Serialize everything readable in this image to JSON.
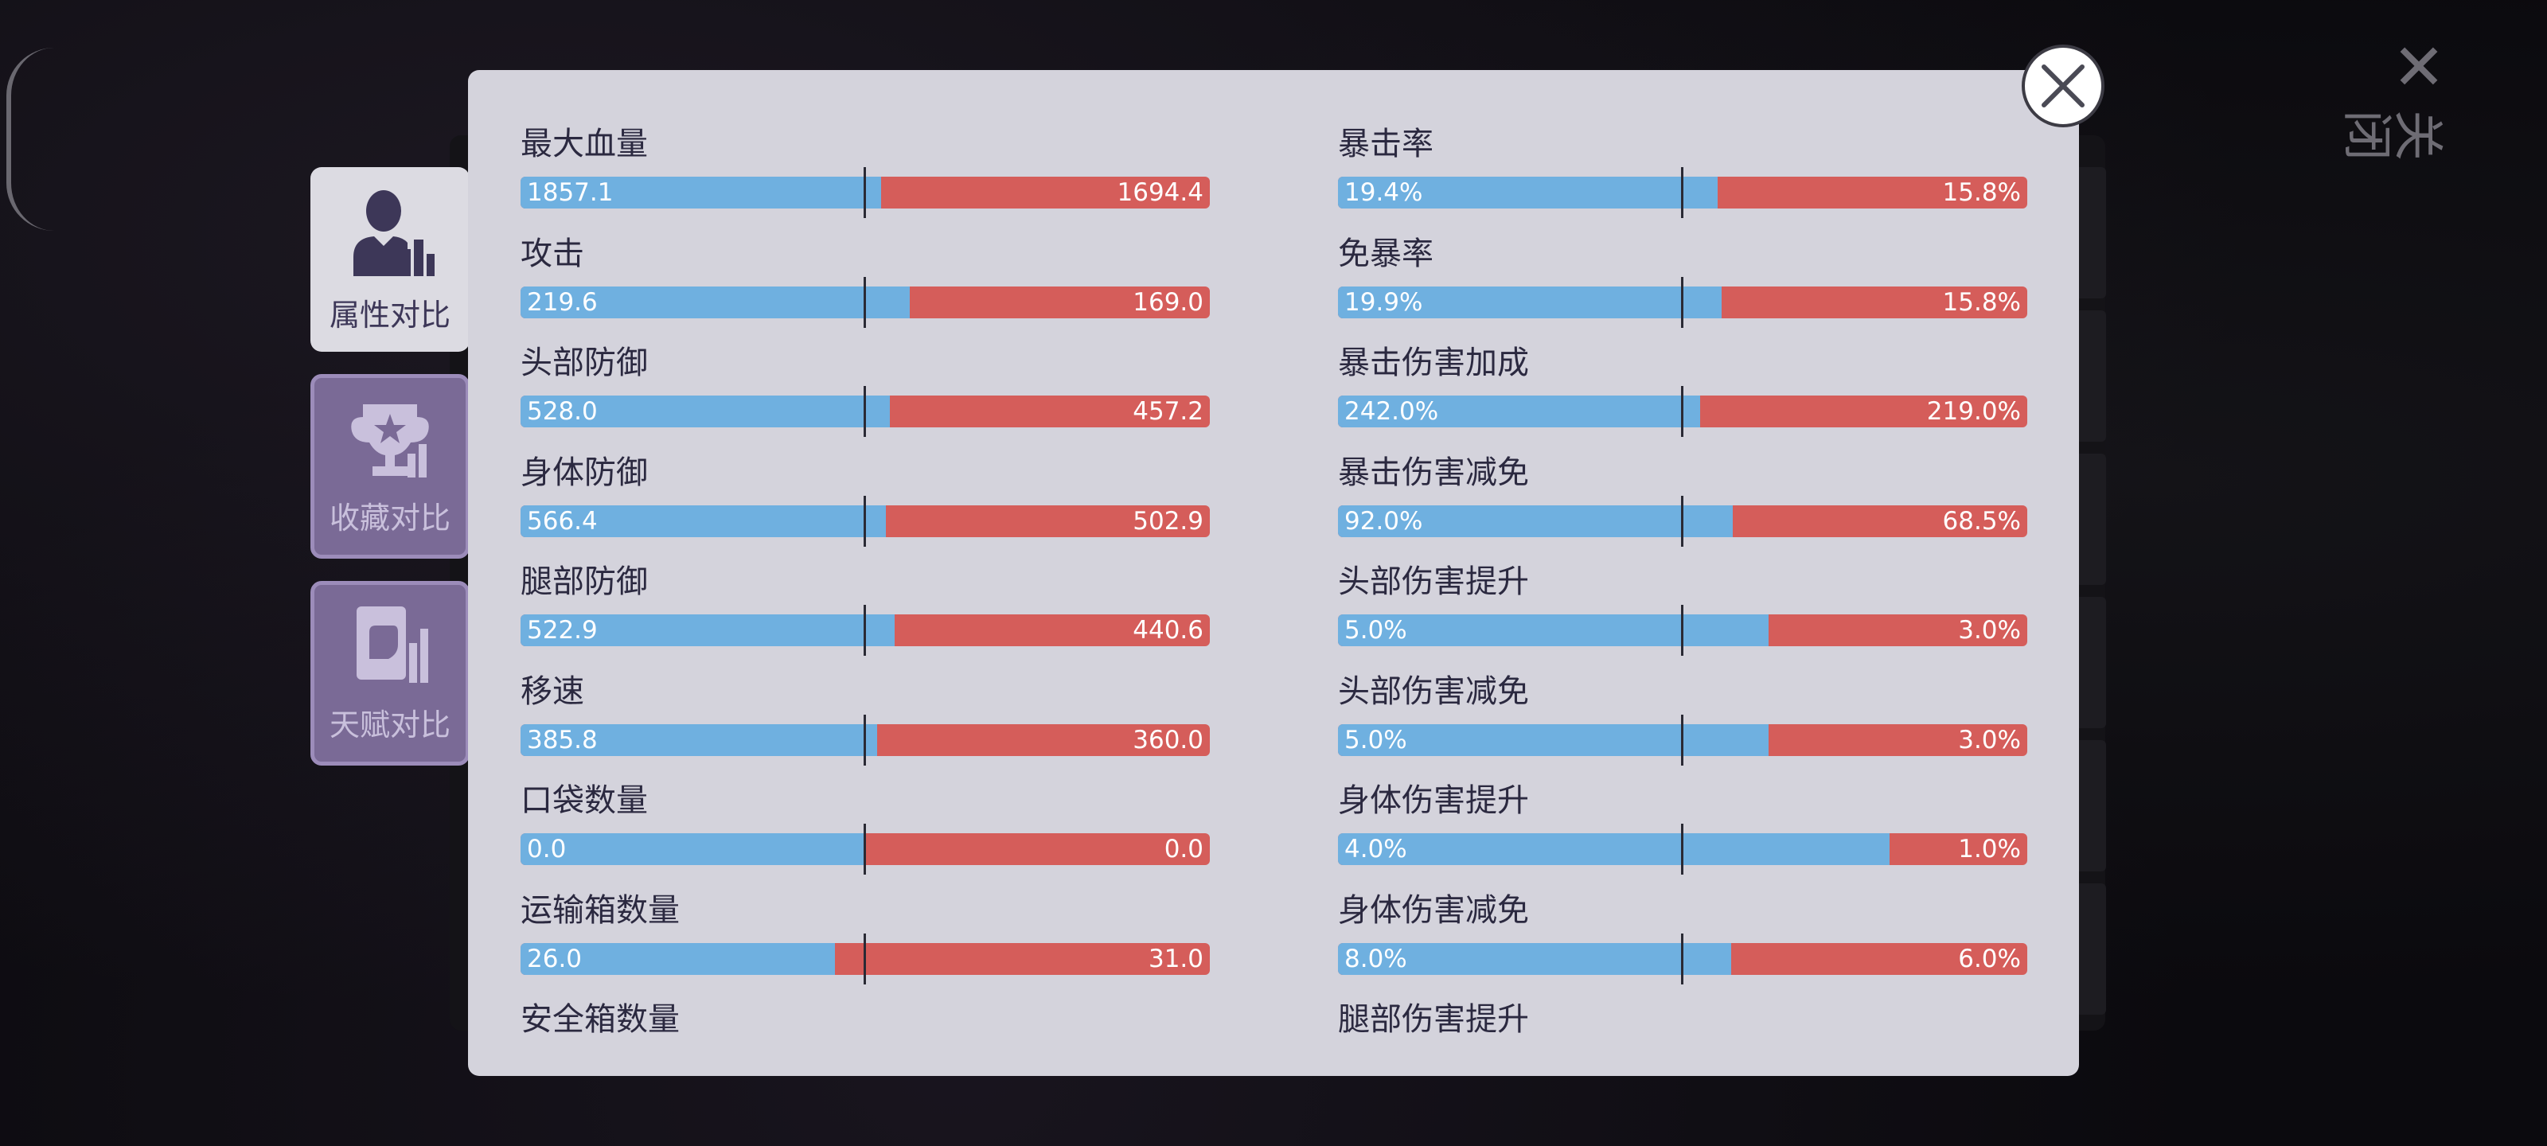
{
  "background": {
    "close_label": "关闭"
  },
  "tabs": [
    {
      "label": "属性对比",
      "icon": "person-chart-icon",
      "active": true
    },
    {
      "label": "收藏对比",
      "icon": "trophy-chart-icon",
      "active": false
    },
    {
      "label": "天赋对比",
      "icon": "fist-chart-icon",
      "active": false
    }
  ],
  "colors": {
    "left_bar": "#6fb0e0",
    "right_bar": "#d55d5a",
    "dialog_bg": "#d4d3dc",
    "active_tab": "#dcdbe2",
    "inactive_tab": "#7a6a96"
  },
  "left_column": [
    {
      "name": "最大血量",
      "left": "1857.1",
      "right": "1694.4",
      "left_share": 0.523
    },
    {
      "name": "攻击",
      "left": "219.6",
      "right": "169.0",
      "left_share": 0.565
    },
    {
      "name": "头部防御",
      "left": "528.0",
      "right": "457.2",
      "left_share": 0.536
    },
    {
      "name": "身体防御",
      "left": "566.4",
      "right": "502.9",
      "left_share": 0.53
    },
    {
      "name": "腿部防御",
      "left": "522.9",
      "right": "440.6",
      "left_share": 0.543
    },
    {
      "name": "移速",
      "left": "385.8",
      "right": "360.0",
      "left_share": 0.517
    },
    {
      "name": "口袋数量",
      "left": "0.0",
      "right": "0.0",
      "left_share": 0.5
    },
    {
      "name": "运输箱数量",
      "left": "26.0",
      "right": "31.0",
      "left_share": 0.456
    },
    {
      "name": "安全箱数量"
    }
  ],
  "right_column": [
    {
      "name": "暴击率",
      "left": "19.4%",
      "right": "15.8%",
      "left_share": 0.551
    },
    {
      "name": "免暴率",
      "left": "19.9%",
      "right": "15.8%",
      "left_share": 0.557
    },
    {
      "name": "暴击伤害加成",
      "left": "242.0%",
      "right": "219.0%",
      "left_share": 0.525
    },
    {
      "name": "暴击伤害减免",
      "left": "92.0%",
      "right": "68.5%",
      "left_share": 0.573
    },
    {
      "name": "头部伤害提升",
      "left": "5.0%",
      "right": "3.0%",
      "left_share": 0.625
    },
    {
      "name": "头部伤害减免",
      "left": "5.0%",
      "right": "3.0%",
      "left_share": 0.625
    },
    {
      "name": "身体伤害提升",
      "left": "4.0%",
      "right": "1.0%",
      "left_share": 0.8
    },
    {
      "name": "身体伤害减免",
      "left": "8.0%",
      "right": "6.0%",
      "left_share": 0.571
    },
    {
      "name": "腿部伤害提升"
    }
  ],
  "close_button": {
    "icon": "close-icon"
  }
}
